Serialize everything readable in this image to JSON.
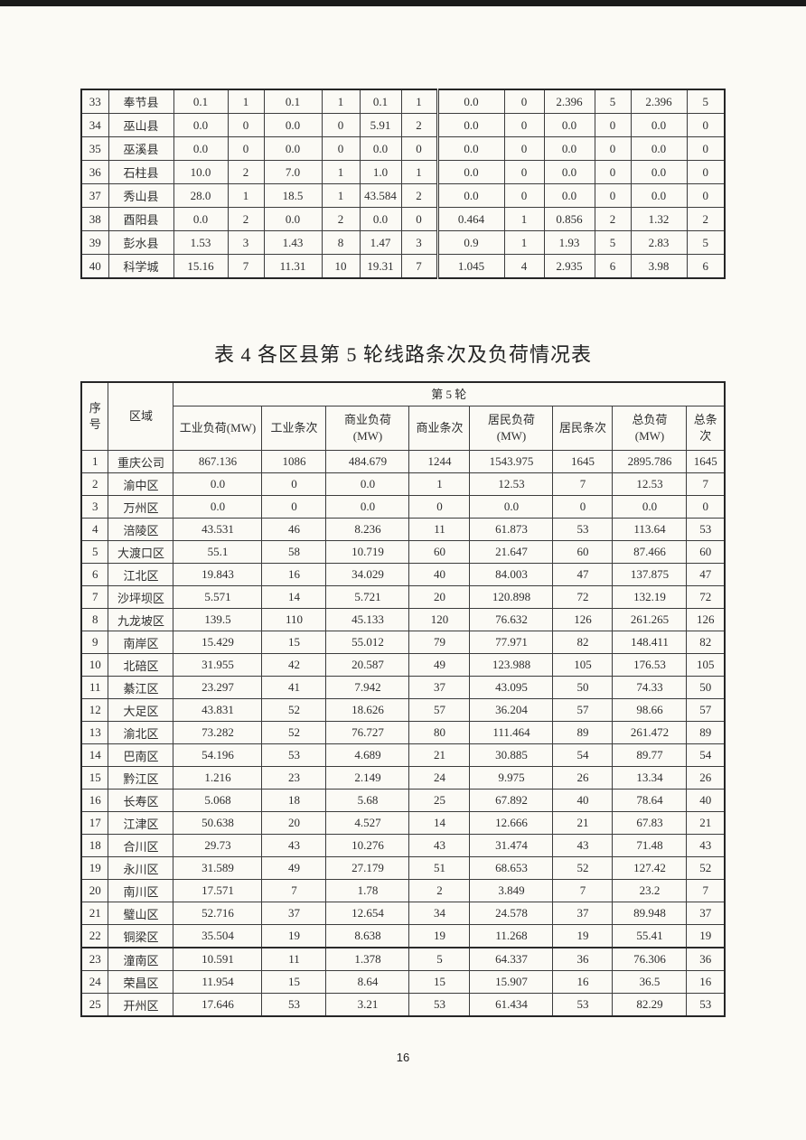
{
  "page": {
    "number": "16",
    "background": "#fbfaf5",
    "border_color": "#3c3c3c",
    "text_color": "#2e2e2e"
  },
  "continuation_table": {
    "rows": [
      {
        "no": "33",
        "region": "奉节县",
        "values": [
          "0.1",
          "1",
          "0.1",
          "1",
          "0.1",
          "1",
          "0.0",
          "0",
          "2.396",
          "5",
          "2.396",
          "5"
        ]
      },
      {
        "no": "34",
        "region": "巫山县",
        "values": [
          "0.0",
          "0",
          "0.0",
          "0",
          "5.91",
          "2",
          "0.0",
          "0",
          "0.0",
          "0",
          "0.0",
          "0"
        ]
      },
      {
        "no": "35",
        "region": "巫溪县",
        "values": [
          "0.0",
          "0",
          "0.0",
          "0",
          "0.0",
          "0",
          "0.0",
          "0",
          "0.0",
          "0",
          "0.0",
          "0"
        ]
      },
      {
        "no": "36",
        "region": "石柱县",
        "values": [
          "10.0",
          "2",
          "7.0",
          "1",
          "1.0",
          "1",
          "0.0",
          "0",
          "0.0",
          "0",
          "0.0",
          "0"
        ]
      },
      {
        "no": "37",
        "region": "秀山县",
        "values": [
          "28.0",
          "1",
          "18.5",
          "1",
          "43.584",
          "2",
          "0.0",
          "0",
          "0.0",
          "0",
          "0.0",
          "0"
        ]
      },
      {
        "no": "38",
        "region": "酉阳县",
        "values": [
          "0.0",
          "2",
          "0.0",
          "2",
          "0.0",
          "0",
          "0.464",
          "1",
          "0.856",
          "2",
          "1.32",
          "2"
        ]
      },
      {
        "no": "39",
        "region": "彭水县",
        "values": [
          "1.53",
          "3",
          "1.43",
          "8",
          "1.47",
          "3",
          "0.9",
          "1",
          "1.93",
          "5",
          "2.83",
          "5"
        ]
      },
      {
        "no": "40",
        "region": "科学城",
        "values": [
          "15.16",
          "7",
          "11.31",
          "10",
          "19.31",
          "7",
          "1.045",
          "4",
          "2.935",
          "6",
          "3.98",
          "6"
        ]
      }
    ]
  },
  "table4": {
    "title": "表 4 各区县第 5 轮线路条次及负荷情况表",
    "header": {
      "seq": "序\n号",
      "region": "区域",
      "round": "第 5 轮",
      "columns": [
        "工业负荷(MW)",
        "工业条次",
        "商业负荷\n(MW)",
        "商业条次",
        "居民负荷\n(MW)",
        "居民条次",
        "总负荷\n(MW)",
        "总条次"
      ]
    },
    "rows": [
      {
        "no": "1",
        "region": "重庆公司",
        "values": [
          "867.136",
          "1086",
          "484.679",
          "1244",
          "1543.975",
          "1645",
          "2895.786",
          "1645"
        ]
      },
      {
        "no": "2",
        "region": "渝中区",
        "values": [
          "0.0",
          "0",
          "0.0",
          "1",
          "12.53",
          "7",
          "12.53",
          "7"
        ]
      },
      {
        "no": "3",
        "region": "万州区",
        "values": [
          "0.0",
          "0",
          "0.0",
          "0",
          "0.0",
          "0",
          "0.0",
          "0"
        ]
      },
      {
        "no": "4",
        "region": "涪陵区",
        "values": [
          "43.531",
          "46",
          "8.236",
          "11",
          "61.873",
          "53",
          "113.64",
          "53"
        ]
      },
      {
        "no": "5",
        "region": "大渡口区",
        "values": [
          "55.1",
          "58",
          "10.719",
          "60",
          "21.647",
          "60",
          "87.466",
          "60"
        ]
      },
      {
        "no": "6",
        "region": "江北区",
        "values": [
          "19.843",
          "16",
          "34.029",
          "40",
          "84.003",
          "47",
          "137.875",
          "47"
        ]
      },
      {
        "no": "7",
        "region": "沙坪坝区",
        "values": [
          "5.571",
          "14",
          "5.721",
          "20",
          "120.898",
          "72",
          "132.19",
          "72"
        ]
      },
      {
        "no": "8",
        "region": "九龙坡区",
        "values": [
          "139.5",
          "110",
          "45.133",
          "120",
          "76.632",
          "126",
          "261.265",
          "126"
        ]
      },
      {
        "no": "9",
        "region": "南岸区",
        "values": [
          "15.429",
          "15",
          "55.012",
          "79",
          "77.971",
          "82",
          "148.411",
          "82"
        ]
      },
      {
        "no": "10",
        "region": "北碚区",
        "values": [
          "31.955",
          "42",
          "20.587",
          "49",
          "123.988",
          "105",
          "176.53",
          "105"
        ]
      },
      {
        "no": "11",
        "region": "綦江区",
        "values": [
          "23.297",
          "41",
          "7.942",
          "37",
          "43.095",
          "50",
          "74.33",
          "50"
        ]
      },
      {
        "no": "12",
        "region": "大足区",
        "values": [
          "43.831",
          "52",
          "18.626",
          "57",
          "36.204",
          "57",
          "98.66",
          "57"
        ]
      },
      {
        "no": "13",
        "region": "渝北区",
        "values": [
          "73.282",
          "52",
          "76.727",
          "80",
          "111.464",
          "89",
          "261.472",
          "89"
        ]
      },
      {
        "no": "14",
        "region": "巴南区",
        "values": [
          "54.196",
          "53",
          "4.689",
          "21",
          "30.885",
          "54",
          "89.77",
          "54"
        ]
      },
      {
        "no": "15",
        "region": "黔江区",
        "values": [
          "1.216",
          "23",
          "2.149",
          "24",
          "9.975",
          "26",
          "13.34",
          "26"
        ]
      },
      {
        "no": "16",
        "region": "长寿区",
        "values": [
          "5.068",
          "18",
          "5.68",
          "25",
          "67.892",
          "40",
          "78.64",
          "40"
        ]
      },
      {
        "no": "17",
        "region": "江津区",
        "values": [
          "50.638",
          "20",
          "4.527",
          "14",
          "12.666",
          "21",
          "67.83",
          "21"
        ]
      },
      {
        "no": "18",
        "region": "合川区",
        "values": [
          "29.73",
          "43",
          "10.276",
          "43",
          "31.474",
          "43",
          "71.48",
          "43"
        ]
      },
      {
        "no": "19",
        "region": "永川区",
        "values": [
          "31.589",
          "49",
          "27.179",
          "51",
          "68.653",
          "52",
          "127.42",
          "52"
        ]
      },
      {
        "no": "20",
        "region": "南川区",
        "values": [
          "17.571",
          "7",
          "1.78",
          "2",
          "3.849",
          "7",
          "23.2",
          "7"
        ]
      },
      {
        "no": "21",
        "region": "璧山区",
        "values": [
          "52.716",
          "37",
          "12.654",
          "34",
          "24.578",
          "37",
          "89.948",
          "37"
        ]
      },
      {
        "no": "22",
        "region": "铜梁区",
        "values": [
          "35.504",
          "19",
          "8.638",
          "19",
          "11.268",
          "19",
          "55.41",
          "19"
        ]
      },
      {
        "no": "23",
        "region": "潼南区",
        "values": [
          "10.591",
          "11",
          "1.378",
          "5",
          "64.337",
          "36",
          "76.306",
          "36"
        ]
      },
      {
        "no": "24",
        "region": "荣昌区",
        "values": [
          "11.954",
          "15",
          "8.64",
          "15",
          "15.907",
          "16",
          "36.5",
          "16"
        ]
      },
      {
        "no": "25",
        "region": "开州区",
        "values": [
          "17.646",
          "53",
          "3.21",
          "53",
          "61.434",
          "53",
          "82.29",
          "53"
        ]
      }
    ]
  }
}
